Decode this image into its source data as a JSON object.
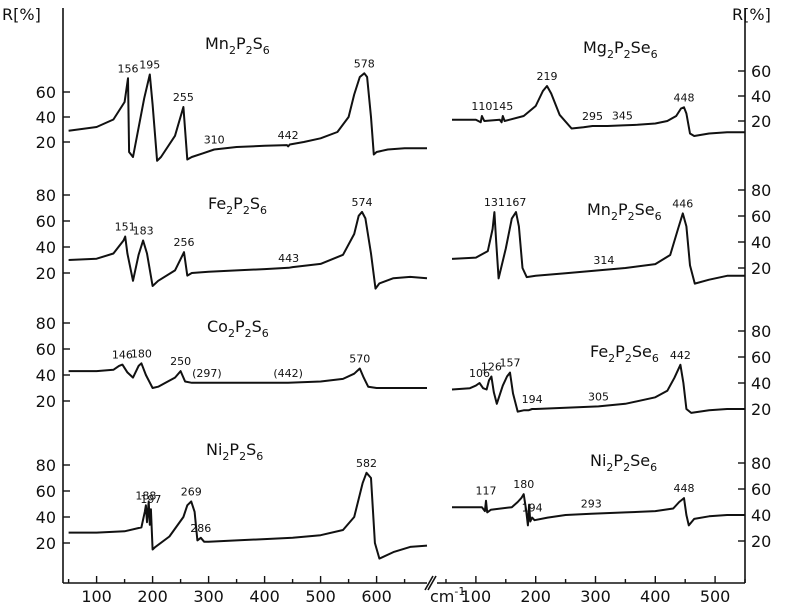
{
  "figure": {
    "y_axis_label_left": "R[%]",
    "y_axis_label_right": "R[%]",
    "x_unit_label": "cm",
    "x_unit_exponent": "-1"
  },
  "chart_data": [
    {
      "type": "line",
      "name": "Mn2P2S6",
      "title_parts": [
        "Mn",
        "2",
        "P",
        "2",
        "S",
        "6"
      ],
      "xlim": [
        40,
        690
      ],
      "ylim": [
        5,
        80
      ],
      "yticks": [
        20,
        40,
        60
      ],
      "ylabel": "R[%]",
      "x": [
        50,
        100,
        130,
        150,
        156,
        158,
        165,
        185,
        195,
        200,
        208,
        215,
        240,
        255,
        262,
        270,
        290,
        310,
        330,
        350,
        400,
        440,
        442,
        445,
        470,
        500,
        530,
        550,
        560,
        570,
        578,
        583,
        590,
        595,
        600,
        620,
        650,
        690
      ],
      "y": [
        29,
        32,
        38,
        52,
        71,
        12,
        8,
        55,
        74,
        50,
        5,
        8,
        25,
        48,
        6,
        8,
        11,
        14,
        15,
        16,
        17,
        17.5,
        16.5,
        18,
        20,
        23,
        28,
        40,
        58,
        72,
        75,
        72,
        40,
        10,
        12,
        14,
        15,
        15
      ],
      "peak_labels": [
        {
          "x": 156,
          "y": 71,
          "text": "156"
        },
        {
          "x": 195,
          "y": 74,
          "text": "195"
        },
        {
          "x": 255,
          "y": 48,
          "text": "255"
        },
        {
          "x": 310,
          "y": 14,
          "text": "310"
        },
        {
          "x": 442,
          "y": 17.5,
          "text": "442"
        },
        {
          "x": 578,
          "y": 75,
          "text": "578"
        }
      ]
    },
    {
      "type": "line",
      "name": "Fe2P2S6",
      "title_parts": [
        "Fe",
        "2",
        "P",
        "2",
        "S",
        "6"
      ],
      "xlim": [
        40,
        690
      ],
      "ylim": [
        5,
        90
      ],
      "yticks": [
        20,
        40,
        60,
        80
      ],
      "ylabel": "",
      "x": [
        50,
        100,
        130,
        148,
        151,
        155,
        165,
        175,
        183,
        190,
        200,
        210,
        240,
        256,
        262,
        270,
        300,
        350,
        400,
        443,
        450,
        500,
        540,
        560,
        568,
        574,
        580,
        590,
        598,
        605,
        630,
        660,
        690
      ],
      "y": [
        30,
        31,
        35,
        45,
        48,
        35,
        14,
        34,
        45,
        35,
        10,
        14,
        22,
        36,
        18,
        20,
        21,
        22,
        23,
        24,
        24.5,
        27,
        34,
        50,
        64,
        67,
        62,
        35,
        8,
        12,
        16,
        17,
        16
      ],
      "peak_labels": [
        {
          "x": 151,
          "y": 48,
          "text": "151"
        },
        {
          "x": 183,
          "y": 45,
          "text": "183"
        },
        {
          "x": 256,
          "y": 36,
          "text": "256"
        },
        {
          "x": 443,
          "y": 24,
          "text": "443"
        },
        {
          "x": 574,
          "y": 67,
          "text": "574"
        }
      ]
    },
    {
      "type": "line",
      "name": "Co2P2S6",
      "title_parts": [
        "Co",
        "2",
        "P",
        "2",
        "S",
        "6"
      ],
      "xlim": [
        40,
        690
      ],
      "ylim": [
        5,
        90
      ],
      "yticks": [
        20,
        40,
        60,
        80
      ],
      "ylabel": "",
      "x": [
        50,
        100,
        130,
        140,
        146,
        155,
        165,
        175,
        180,
        188,
        200,
        210,
        240,
        250,
        258,
        270,
        297,
        350,
        400,
        442,
        500,
        540,
        560,
        570,
        577,
        585,
        600,
        650,
        690
      ],
      "y": [
        43,
        43,
        44,
        47,
        48,
        42,
        38,
        47,
        49,
        40,
        30,
        31,
        38,
        43,
        35,
        34,
        34,
        34,
        34,
        34,
        35,
        37,
        41,
        45,
        38,
        31,
        30,
        30,
        30
      ],
      "peak_labels": [
        {
          "x": 146,
          "y": 48,
          "text": "146"
        },
        {
          "x": 180,
          "y": 49,
          "text": "180"
        },
        {
          "x": 250,
          "y": 43,
          "text": "250"
        },
        {
          "x": 297,
          "y": 34,
          "text": "(297)"
        },
        {
          "x": 442,
          "y": 34,
          "text": "(442)"
        },
        {
          "x": 570,
          "y": 45,
          "text": "570"
        }
      ]
    },
    {
      "type": "line",
      "name": "Ni2P2S6",
      "title_parts": [
        "Ni",
        "2",
        "P",
        "2",
        "S",
        "6"
      ],
      "xlim": [
        40,
        690
      ],
      "ylim": [
        5,
        90
      ],
      "yticks": [
        20,
        40,
        60,
        80
      ],
      "ylabel": "",
      "x": [
        50,
        100,
        150,
        180,
        186,
        188,
        190,
        193,
        195,
        197,
        200,
        205,
        230,
        255,
        262,
        269,
        275,
        280,
        286,
        292,
        300,
        350,
        400,
        450,
        500,
        540,
        560,
        575,
        582,
        590,
        597,
        605,
        630,
        660,
        690
      ],
      "y": [
        28,
        28,
        29,
        32,
        44,
        49,
        36,
        52,
        34,
        46,
        15,
        17,
        25,
        40,
        49,
        52,
        44,
        22,
        24,
        21,
        21,
        22,
        23,
        24,
        26,
        30,
        40,
        66,
        74,
        70,
        20,
        8,
        13,
        17,
        18
      ],
      "peak_labels": [
        {
          "x": 188,
          "y": 49,
          "text": "188"
        },
        {
          "x": 197,
          "y": 46,
          "text": "197"
        },
        {
          "x": 269,
          "y": 52,
          "text": "269"
        },
        {
          "x": 286,
          "y": 24,
          "text": "286"
        },
        {
          "x": 582,
          "y": 74,
          "text": "582"
        }
      ]
    },
    {
      "type": "line",
      "name": "Mg2P2Se6",
      "title_parts": [
        "Mg",
        "2",
        "P",
        "2",
        "Se",
        "6"
      ],
      "xlim": [
        40,
        550
      ],
      "ylim": [
        5,
        80
      ],
      "yticks": [
        20,
        40,
        60
      ],
      "ylabel": "R[%]",
      "x": [
        60,
        100,
        108,
        110,
        114,
        140,
        143,
        145,
        148,
        180,
        200,
        212,
        219,
        226,
        240,
        260,
        280,
        295,
        320,
        345,
        370,
        400,
        420,
        435,
        443,
        448,
        452,
        458,
        465,
        490,
        520,
        550
      ],
      "y": [
        21,
        21,
        19,
        24,
        20,
        21,
        19,
        24,
        20,
        24,
        32,
        44,
        48,
        42,
        25,
        14,
        15,
        16,
        16,
        16.5,
        17,
        18,
        20,
        24,
        30,
        31,
        26,
        10,
        8,
        10,
        11,
        11
      ],
      "peak_labels": [
        {
          "x": 110,
          "y": 24,
          "text": "110"
        },
        {
          "x": 145,
          "y": 24,
          "text": "145"
        },
        {
          "x": 219,
          "y": 48,
          "text": "219"
        },
        {
          "x": 295,
          "y": 16,
          "text": "295"
        },
        {
          "x": 345,
          "y": 16.5,
          "text": "345"
        },
        {
          "x": 448,
          "y": 31,
          "text": "448"
        }
      ]
    },
    {
      "type": "line",
      "name": "Mn2P2Se6",
      "title_parts": [
        "Mn",
        "2",
        "P",
        "2",
        "Se",
        "6"
      ],
      "xlim": [
        40,
        550
      ],
      "ylim": [
        5,
        90
      ],
      "yticks": [
        20,
        40,
        60,
        80
      ],
      "ylabel": "",
      "x": [
        60,
        100,
        120,
        128,
        131,
        134,
        138,
        150,
        160,
        167,
        172,
        178,
        185,
        200,
        250,
        300,
        314,
        350,
        400,
        425,
        438,
        446,
        452,
        458,
        466,
        490,
        520,
        550
      ],
      "y": [
        27,
        28,
        33,
        50,
        63,
        40,
        12,
        35,
        58,
        63,
        52,
        20,
        13,
        14,
        16,
        18,
        18.5,
        20,
        23,
        30,
        50,
        62,
        52,
        22,
        8,
        11,
        14,
        14
      ],
      "peak_labels": [
        {
          "x": 131,
          "y": 63,
          "text": "131"
        },
        {
          "x": 167,
          "y": 63,
          "text": "167"
        },
        {
          "x": 314,
          "y": 18.5,
          "text": "314"
        },
        {
          "x": 446,
          "y": 62,
          "text": "446"
        }
      ]
    },
    {
      "type": "line",
      "name": "Fe2P2Se6",
      "title_parts": [
        "Fe",
        "2",
        "P",
        "2",
        "Se",
        "6"
      ],
      "xlim": [
        40,
        550
      ],
      "ylim": [
        5,
        90
      ],
      "yticks": [
        20,
        40,
        60,
        80
      ],
      "ylabel": "",
      "x": [
        60,
        90,
        100,
        106,
        112,
        118,
        122,
        126,
        130,
        135,
        145,
        152,
        157,
        162,
        170,
        180,
        188,
        194,
        200,
        250,
        305,
        350,
        400,
        420,
        432,
        442,
        447,
        452,
        460,
        490,
        520,
        550
      ],
      "y": [
        35,
        36,
        38,
        40,
        36,
        35,
        42,
        45,
        33,
        24,
        38,
        45,
        48,
        32,
        18,
        19,
        19,
        20,
        20,
        21,
        22,
        24,
        29,
        34,
        44,
        54,
        40,
        20,
        17,
        19,
        20,
        20
      ],
      "peak_labels": [
        {
          "x": 106,
          "y": 40,
          "text": "106"
        },
        {
          "x": 126,
          "y": 45,
          "text": "126"
        },
        {
          "x": 157,
          "y": 48,
          "text": "157"
        },
        {
          "x": 194,
          "y": 20,
          "text": "194"
        },
        {
          "x": 305,
          "y": 22,
          "text": "305"
        },
        {
          "x": 442,
          "y": 54,
          "text": "442"
        }
      ]
    },
    {
      "type": "line",
      "name": "Ni2P2Se6",
      "title_parts": [
        "Ni",
        "2",
        "P",
        "2",
        "Se",
        "6"
      ],
      "xlim": [
        40,
        550
      ],
      "ylim": [
        5,
        90
      ],
      "yticks": [
        20,
        40,
        60,
        80
      ],
      "ylabel": "",
      "x": [
        60,
        100,
        110,
        115,
        117,
        119,
        125,
        160,
        170,
        176,
        180,
        184,
        187,
        189,
        191,
        194,
        198,
        220,
        250,
        293,
        350,
        400,
        430,
        440,
        448,
        452,
        456,
        465,
        490,
        520,
        550
      ],
      "y": [
        46,
        46,
        46,
        43,
        51,
        42,
        44,
        46,
        50,
        53,
        56,
        44,
        32,
        48,
        35,
        38,
        36,
        38,
        40,
        41,
        42,
        43,
        45,
        50,
        53,
        40,
        32,
        37,
        39,
        40,
        40
      ],
      "peak_labels": [
        {
          "x": 117,
          "y": 51,
          "text": "117"
        },
        {
          "x": 180,
          "y": 56,
          "text": "180"
        },
        {
          "x": 194,
          "y": 38,
          "text": "194"
        },
        {
          "x": 293,
          "y": 41,
          "text": "293"
        },
        {
          "x": 448,
          "y": 53,
          "text": "448"
        }
      ]
    }
  ]
}
